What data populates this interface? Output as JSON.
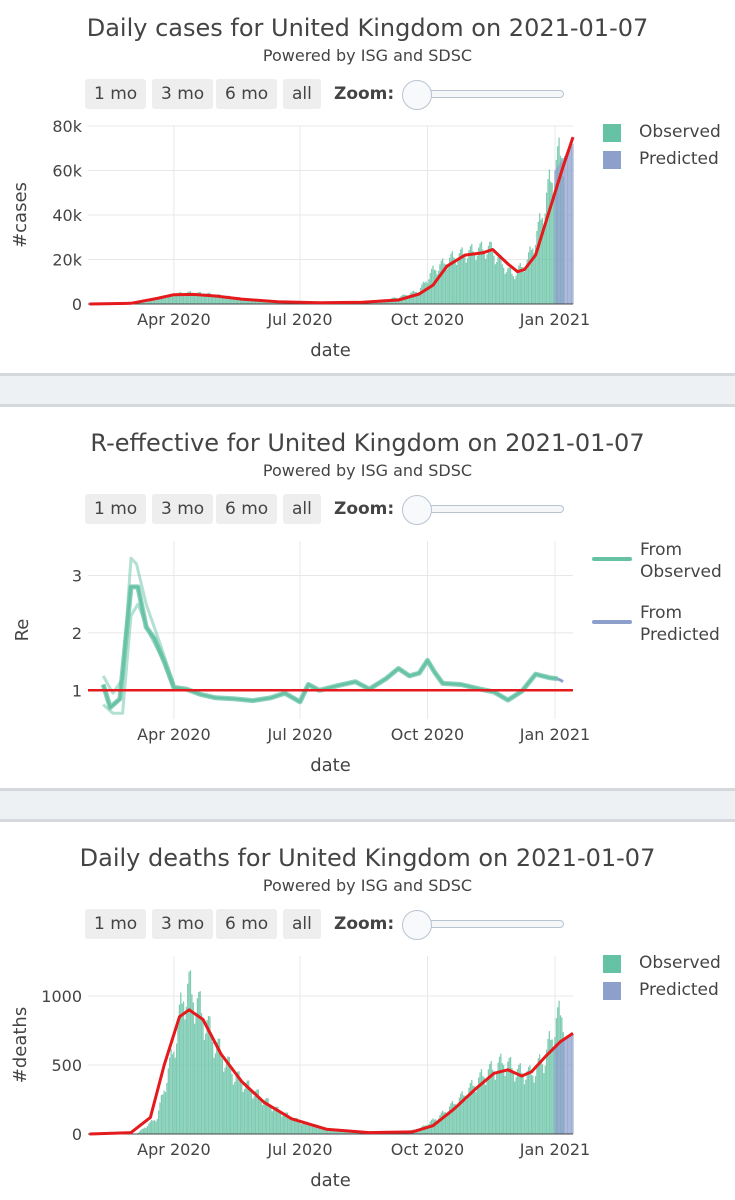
{
  "panels": [
    {
      "id": "cases",
      "title": "Daily cases for United Kingdom on 2021-01-07",
      "subtitle": "Powered by ISG and SDSC",
      "buttons": [
        "1 mo",
        "3 mo",
        "6 mo",
        "all"
      ],
      "zoom_label": "Zoom:",
      "legend": [
        "Observed",
        "Predicted"
      ]
    },
    {
      "id": "re",
      "title": "R-effective for United Kingdom on 2021-01-07",
      "subtitle": "Powered by ISG and SDSC",
      "buttons": [
        "1 mo",
        "3 mo",
        "6 mo",
        "all"
      ],
      "zoom_label": "Zoom:",
      "legend": [
        "From Observed",
        "From Predicted"
      ]
    },
    {
      "id": "deaths",
      "title": "Daily deaths for United Kingdom on 2021-01-07",
      "subtitle": "Powered by ISG and SDSC",
      "buttons": [
        "1 mo",
        "3 mo",
        "6 mo",
        "all"
      ],
      "zoom_label": "Zoom:",
      "legend": [
        "Observed",
        "Predicted"
      ]
    }
  ],
  "colors": {
    "observed": "#66c2a5",
    "predicted": "#8da0cb",
    "fit": "#e41a1c",
    "grid": "#e8e8e8"
  },
  "chart_data": [
    {
      "type": "bar",
      "title": "Daily cases for United Kingdom on 2021-01-07",
      "xlabel": "date",
      "ylabel": "#cases",
      "x_ticks": [
        "Apr 2020",
        "Jul 2020",
        "Oct 2020",
        "Jan 2021"
      ],
      "x_tick_dates": [
        "2020-04-01",
        "2020-07-01",
        "2020-10-01",
        "2021-01-01"
      ],
      "y_ticks": [
        "0",
        "20k",
        "40k",
        "60k",
        "80k"
      ],
      "y_tick_values": [
        0,
        20000,
        40000,
        60000,
        80000
      ],
      "xlim": [
        "2020-01-30",
        "2021-01-14"
      ],
      "ylim": [
        0,
        80000
      ],
      "legend_position": "top-right",
      "series": [
        {
          "name": "Observed",
          "kind": "bar",
          "date_range": [
            "2020-01-31",
            "2021-01-07"
          ],
          "points": [
            [
              "2020-01-31",
              0
            ],
            [
              "2020-03-01",
              100
            ],
            [
              "2020-03-15",
              1200
            ],
            [
              "2020-04-01",
              4300
            ],
            [
              "2020-04-10",
              5100
            ],
            [
              "2020-04-25",
              4600
            ],
            [
              "2020-05-10",
              3300
            ],
            [
              "2020-06-01",
              1600
            ],
            [
              "2020-07-01",
              700
            ],
            [
              "2020-08-01",
              800
            ],
            [
              "2020-08-25",
              1200
            ],
            [
              "2020-09-10",
              3000
            ],
            [
              "2020-09-25",
              6000
            ],
            [
              "2020-10-05",
              15000
            ],
            [
              "2020-10-20",
              21000
            ],
            [
              "2020-11-05",
              24000
            ],
            [
              "2020-11-15",
              25000
            ],
            [
              "2020-11-25",
              17000
            ],
            [
              "2020-12-02",
              13000
            ],
            [
              "2020-12-12",
              19000
            ],
            [
              "2020-12-20",
              33000
            ],
            [
              "2020-12-29",
              55000
            ],
            [
              "2021-01-07",
              70000
            ]
          ]
        },
        {
          "name": "Predicted",
          "kind": "bar",
          "date_range": [
            "2021-01-01",
            "2021-01-14"
          ],
          "points": [
            [
              "2021-01-01",
              60000
            ],
            [
              "2021-01-14",
              72000
            ]
          ]
        },
        {
          "name": "fit",
          "kind": "line",
          "points": [
            [
              "2020-01-31",
              0
            ],
            [
              "2020-03-01",
              300
            ],
            [
              "2020-03-20",
              2500
            ],
            [
              "2020-04-01",
              4200
            ],
            [
              "2020-04-15",
              4300
            ],
            [
              "2020-05-01",
              3600
            ],
            [
              "2020-05-20",
              2200
            ],
            [
              "2020-06-15",
              1000
            ],
            [
              "2020-07-15",
              600
            ],
            [
              "2020-08-15",
              800
            ],
            [
              "2020-09-10",
              1800
            ],
            [
              "2020-09-25",
              4500
            ],
            [
              "2020-10-05",
              8500
            ],
            [
              "2020-10-15",
              17000
            ],
            [
              "2020-10-28",
              22000
            ],
            [
              "2020-11-10",
              23000
            ],
            [
              "2020-11-17",
              24500
            ],
            [
              "2020-11-28",
              18000
            ],
            [
              "2020-12-05",
              14500
            ],
            [
              "2020-12-10",
              15500
            ],
            [
              "2020-12-18",
              22000
            ],
            [
              "2020-12-28",
              42000
            ],
            [
              "2021-01-07",
              62000
            ],
            [
              "2021-01-14",
              75000
            ]
          ]
        }
      ]
    },
    {
      "type": "line",
      "title": "R-effective for United Kingdom on 2021-01-07",
      "xlabel": "date",
      "ylabel": "Re",
      "x_ticks": [
        "Apr 2020",
        "Jul 2020",
        "Oct 2020",
        "Jan 2021"
      ],
      "x_tick_dates": [
        "2020-04-01",
        "2020-07-01",
        "2020-10-01",
        "2021-01-01"
      ],
      "y_ticks": [
        "1",
        "2",
        "3"
      ],
      "y_tick_values": [
        1,
        2,
        3
      ],
      "xlim": [
        "2020-01-30",
        "2021-01-14"
      ],
      "ylim": [
        0.5,
        3.6
      ],
      "reference_line": 1,
      "legend_position": "top-right",
      "series": [
        {
          "name": "From Observed",
          "points": [
            [
              "2020-02-10",
              1.1
            ],
            [
              "2020-02-15",
              0.7
            ],
            [
              "2020-02-22",
              0.85
            ],
            [
              "2020-03-01",
              2.8
            ],
            [
              "2020-03-06",
              2.8
            ],
            [
              "2020-03-12",
              2.1
            ],
            [
              "2020-03-18",
              1.9
            ],
            [
              "2020-03-25",
              1.5
            ],
            [
              "2020-04-01",
              1.05
            ],
            [
              "2020-04-10",
              1.02
            ],
            [
              "2020-04-20",
              0.93
            ],
            [
              "2020-05-01",
              0.87
            ],
            [
              "2020-05-15",
              0.85
            ],
            [
              "2020-05-28",
              0.82
            ],
            [
              "2020-06-10",
              0.87
            ],
            [
              "2020-06-20",
              0.95
            ],
            [
              "2020-07-01",
              0.8
            ],
            [
              "2020-07-07",
              1.1
            ],
            [
              "2020-07-15",
              1.0
            ],
            [
              "2020-07-28",
              1.08
            ],
            [
              "2020-08-10",
              1.15
            ],
            [
              "2020-08-20",
              1.02
            ],
            [
              "2020-09-01",
              1.2
            ],
            [
              "2020-09-10",
              1.38
            ],
            [
              "2020-09-18",
              1.25
            ],
            [
              "2020-09-25",
              1.3
            ],
            [
              "2020-10-01",
              1.52
            ],
            [
              "2020-10-06",
              1.32
            ],
            [
              "2020-10-12",
              1.12
            ],
            [
              "2020-10-25",
              1.1
            ],
            [
              "2020-11-08",
              1.02
            ],
            [
              "2020-11-18",
              0.97
            ],
            [
              "2020-11-28",
              0.83
            ],
            [
              "2020-12-08",
              0.98
            ],
            [
              "2020-12-18",
              1.28
            ],
            [
              "2020-12-28",
              1.22
            ],
            [
              "2021-01-03",
              1.2
            ]
          ]
        },
        {
          "name": "From Predicted",
          "points": [
            [
              "2021-01-03",
              1.2
            ],
            [
              "2021-01-07",
              1.15
            ]
          ]
        },
        {
          "name": "upper band",
          "points": [
            [
              "2020-02-10",
              1.25
            ],
            [
              "2020-02-17",
              0.95
            ],
            [
              "2020-02-24",
              1.2
            ],
            [
              "2020-03-01",
              3.3
            ],
            [
              "2020-03-05",
              3.2
            ],
            [
              "2020-03-12",
              2.5
            ],
            [
              "2020-03-20",
              1.95
            ],
            [
              "2020-04-01",
              1.1
            ]
          ]
        },
        {
          "name": "lower band",
          "points": [
            [
              "2020-02-10",
              0.75
            ],
            [
              "2020-02-17",
              0.6
            ],
            [
              "2020-02-24",
              0.6
            ],
            [
              "2020-03-01",
              2.3
            ],
            [
              "2020-03-06",
              2.5
            ],
            [
              "2020-03-15",
              1.95
            ],
            [
              "2020-03-25",
              1.5
            ],
            [
              "2020-04-01",
              1.0
            ]
          ]
        }
      ]
    },
    {
      "type": "bar",
      "title": "Daily deaths for United Kingdom on 2021-01-07",
      "xlabel": "date",
      "ylabel": "#deaths",
      "x_ticks": [
        "Apr 2020",
        "Jul 2020",
        "Oct 2020",
        "Jan 2021"
      ],
      "x_tick_dates": [
        "2020-04-01",
        "2020-07-01",
        "2020-10-01",
        "2021-01-01"
      ],
      "y_ticks": [
        "0",
        "500",
        "1000"
      ],
      "y_tick_values": [
        0,
        500,
        1000
      ],
      "xlim": [
        "2020-01-30",
        "2021-01-14"
      ],
      "ylim": [
        0,
        1290
      ],
      "legend_position": "top-right",
      "series": [
        {
          "name": "Observed",
          "kind": "bar",
          "date_range": [
            "2020-03-05",
            "2021-01-07"
          ],
          "points": [
            [
              "2020-03-05",
              0
            ],
            [
              "2020-03-20",
              120
            ],
            [
              "2020-04-01",
              620
            ],
            [
              "2020-04-08",
              1000
            ],
            [
              "2020-04-12",
              1050
            ],
            [
              "2020-04-20",
              900
            ],
            [
              "2020-05-01",
              650
            ],
            [
              "2020-05-15",
              420
            ],
            [
              "2020-06-01",
              280
            ],
            [
              "2020-06-15",
              170
            ],
            [
              "2020-07-01",
              90
            ],
            [
              "2020-07-20",
              40
            ],
            [
              "2020-08-15",
              15
            ],
            [
              "2020-09-10",
              12
            ],
            [
              "2020-09-25",
              35
            ],
            [
              "2020-10-10",
              130
            ],
            [
              "2020-10-25",
              260
            ],
            [
              "2020-11-10",
              420
            ],
            [
              "2020-11-25",
              520
            ],
            [
              "2020-12-05",
              450
            ],
            [
              "2020-12-15",
              430
            ],
            [
              "2020-12-25",
              550
            ],
            [
              "2021-01-01",
              780
            ],
            [
              "2021-01-07",
              900
            ]
          ]
        },
        {
          "name": "Predicted",
          "kind": "bar",
          "date_range": [
            "2021-01-01",
            "2021-01-14"
          ],
          "points": [
            [
              "2021-01-01",
              650
            ],
            [
              "2021-01-14",
              720
            ]
          ]
        },
        {
          "name": "fit",
          "kind": "line",
          "points": [
            [
              "2020-01-31",
              0
            ],
            [
              "2020-03-01",
              10
            ],
            [
              "2020-03-15",
              120
            ],
            [
              "2020-03-25",
              500
            ],
            [
              "2020-04-05",
              850
            ],
            [
              "2020-04-12",
              900
            ],
            [
              "2020-04-22",
              830
            ],
            [
              "2020-05-05",
              580
            ],
            [
              "2020-05-20",
              380
            ],
            [
              "2020-06-05",
              230
            ],
            [
              "2020-06-25",
              110
            ],
            [
              "2020-07-20",
              35
            ],
            [
              "2020-08-20",
              10
            ],
            [
              "2020-09-20",
              15
            ],
            [
              "2020-10-05",
              60
            ],
            [
              "2020-10-20",
              180
            ],
            [
              "2020-11-05",
              330
            ],
            [
              "2020-11-18",
              440
            ],
            [
              "2020-11-28",
              465
            ],
            [
              "2020-12-08",
              420
            ],
            [
              "2020-12-15",
              450
            ],
            [
              "2020-12-25",
              560
            ],
            [
              "2021-01-05",
              670
            ],
            [
              "2021-01-14",
              730
            ]
          ]
        }
      ]
    }
  ]
}
